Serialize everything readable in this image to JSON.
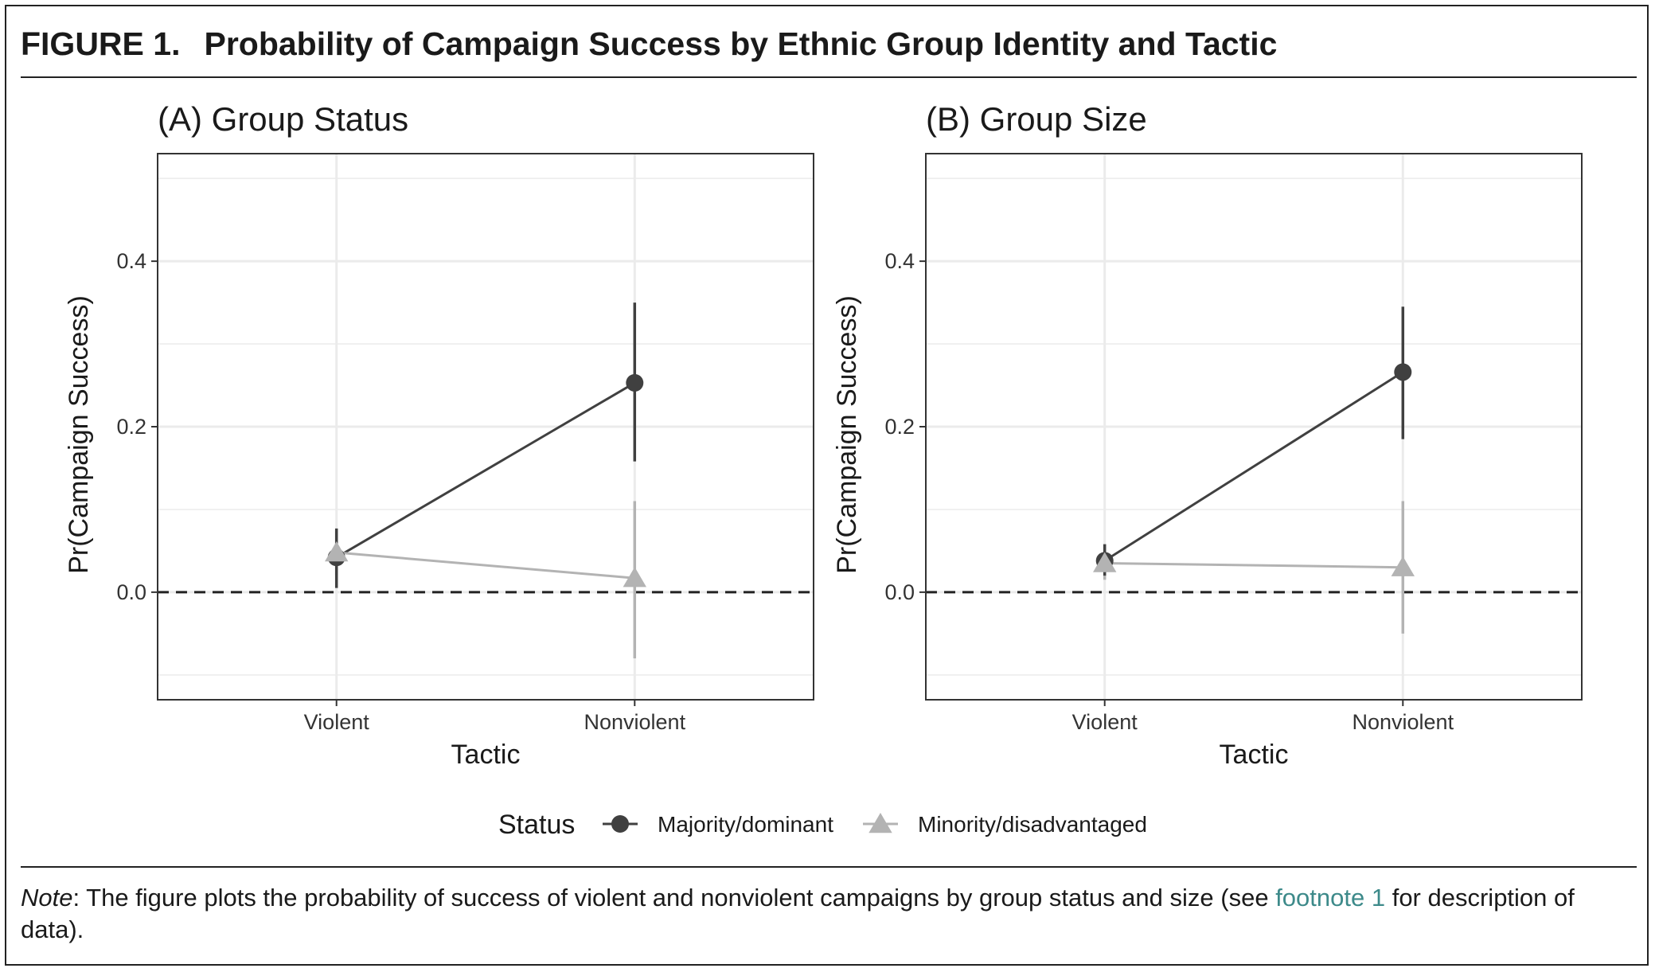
{
  "figure": {
    "label": "FIGURE 1.",
    "title": "Probability of Campaign Success by Ethnic Group Identity and Tactic"
  },
  "note": {
    "lead": "Note",
    "text_before": ": The figure plots the probability of success of violent and nonviolent campaigns by group status and size (see ",
    "link": "footnote 1",
    "text_after": " for description of data)."
  },
  "legend": {
    "title": "Status",
    "position": "bottom"
  },
  "colors": {
    "majority": "#404040",
    "minority": "#b3b3b3",
    "grid": "#ebebeb",
    "zero_line": "#222222",
    "link": "#3d8a8a"
  },
  "chart_data": [
    {
      "type": "scatter",
      "title": "(A) Group Status",
      "xlabel": "Tactic",
      "ylabel": "Pr(Campaign Success)",
      "categories": [
        "Violent",
        "Nonviolent"
      ],
      "ylim": [
        -0.13,
        0.53
      ],
      "yticks": [
        0.0,
        0.2,
        0.4
      ],
      "ytick_labels": [
        "0.0",
        "0.2",
        "0.4"
      ],
      "reference_line": 0,
      "grid": true,
      "series": [
        {
          "name": "Majority/dominant",
          "marker": "circle",
          "values": [
            0.042,
            0.253
          ],
          "lower": [
            0.005,
            0.158
          ],
          "upper": [
            0.077,
            0.35
          ]
        },
        {
          "name": "Minority/disadvantaged",
          "marker": "triangle",
          "values": [
            0.048,
            0.017
          ],
          "lower": [
            0.02,
            -0.08
          ],
          "upper": [
            0.075,
            0.11
          ]
        }
      ]
    },
    {
      "type": "scatter",
      "title": "(B) Group Size",
      "xlabel": "Tactic",
      "ylabel": "Pr(Campaign Success)",
      "categories": [
        "Violent",
        "Nonviolent"
      ],
      "ylim": [
        -0.13,
        0.53
      ],
      "yticks": [
        0.0,
        0.2,
        0.4
      ],
      "ytick_labels": [
        "0.0",
        "0.2",
        "0.4"
      ],
      "reference_line": 0,
      "grid": true,
      "series": [
        {
          "name": "Majority/dominant",
          "marker": "circle",
          "values": [
            0.038,
            0.266
          ],
          "lower": [
            0.02,
            0.185
          ],
          "upper": [
            0.058,
            0.345
          ]
        },
        {
          "name": "Minority/disadvantaged",
          "marker": "triangle",
          "values": [
            0.035,
            0.03
          ],
          "lower": [
            0.015,
            -0.05
          ],
          "upper": [
            0.055,
            0.11
          ]
        }
      ]
    }
  ]
}
